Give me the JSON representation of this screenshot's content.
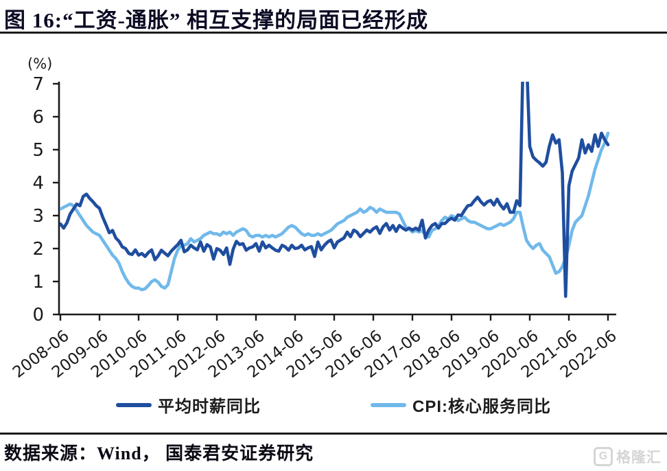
{
  "figure": {
    "title": "图 16:“工资-通胀” 相互支撑的局面已经形成",
    "source": "数据来源：Wind， 国泰君安证券研究"
  },
  "watermark": {
    "text": "格隆汇",
    "logo": "gelonghui-g-mark",
    "color": "#d5d5d5"
  },
  "chart_data": {
    "type": "line",
    "title": "“工资-通胀”相互支撑的局面已经形成",
    "unit_label": "(%)",
    "xlabel": "",
    "ylabel": "(%)",
    "ylim": [
      0,
      7
    ],
    "grid": false,
    "legend_position": "bottom",
    "frequency": "monthly",
    "x_start": "2008-06",
    "x_end": "2022-06",
    "x_tick_labels": [
      "2008-06",
      "2009-06",
      "2010-06",
      "2011-06",
      "2012-06",
      "2013-06",
      "2014-06",
      "2015-06",
      "2016-06",
      "2017-06",
      "2018-06",
      "2019-06",
      "2020-06",
      "2021-06",
      "2022-06"
    ],
    "y_ticks": [
      0,
      1,
      2,
      3,
      4,
      5,
      6,
      7
    ],
    "clip_note": "dark-blue series exceeds axis max (≈8% in 2020-04) and is clipped at top",
    "series": [
      {
        "name": "平均时薪同比",
        "color": "#1f4e9f",
        "values": [
          2.75,
          2.62,
          2.78,
          3.05,
          3.2,
          3.35,
          3.3,
          3.58,
          3.65,
          3.52,
          3.42,
          3.3,
          3.22,
          2.95,
          2.72,
          2.48,
          2.55,
          2.32,
          2.22,
          2.05,
          2.0,
          1.85,
          1.82,
          1.96,
          1.8,
          1.85,
          1.76,
          1.88,
          1.96,
          1.66,
          1.78,
          1.95,
          1.86,
          1.78,
          1.92,
          2.02,
          2.12,
          2.25,
          1.9,
          1.96,
          2.1,
          2.02,
          1.96,
          2.2,
          1.92,
          2.12,
          2.05,
          1.68,
          2.0,
          1.95,
          1.82,
          2.02,
          1.52,
          1.98,
          2.22,
          2.12,
          2.15,
          1.95,
          2.02,
          2.05,
          2.15,
          1.92,
          2.2,
          2.02,
          2.1,
          2.02,
          1.95,
          1.92,
          2.1,
          2.05,
          1.95,
          2.1,
          2.0,
          2.02,
          2.1,
          1.96,
          2.02,
          2.06,
          1.76,
          2.2,
          1.96,
          2.1,
          2.2,
          2.26,
          2.02,
          2.2,
          2.26,
          2.32,
          2.5,
          2.36,
          2.56,
          2.5,
          2.36,
          2.46,
          2.56,
          2.5,
          2.6,
          2.66,
          2.46,
          2.66,
          2.76,
          2.56,
          2.7,
          2.52,
          2.7,
          2.62,
          2.56,
          2.62,
          2.56,
          2.62,
          2.56,
          2.86,
          2.32,
          2.56,
          2.7,
          2.76,
          2.62,
          2.76,
          2.76,
          2.86,
          2.92,
          2.86,
          3.02,
          3.0,
          3.16,
          3.3,
          3.32,
          3.45,
          3.56,
          3.42,
          3.32,
          3.42,
          3.46,
          3.32,
          3.5,
          3.32,
          3.2,
          3.36,
          3.1,
          3.1,
          3.45,
          3.3,
          8.0,
          7.8,
          5.1,
          4.78,
          4.68,
          4.6,
          4.5,
          4.62,
          5.1,
          5.45,
          5.2,
          5.3,
          4.3,
          0.55,
          3.9,
          4.35,
          4.55,
          4.75,
          5.3,
          4.9,
          5.15,
          4.95,
          5.45,
          5.1,
          5.5,
          5.3,
          5.15
        ]
      },
      {
        "name": "CPI:核心服务同比",
        "color": "#70b9ea",
        "values": [
          3.2,
          3.25,
          3.3,
          3.35,
          3.3,
          3.15,
          3.0,
          2.85,
          2.7,
          2.6,
          2.5,
          2.45,
          2.4,
          2.25,
          2.1,
          1.95,
          1.8,
          1.7,
          1.55,
          1.3,
          1.1,
          0.95,
          0.85,
          0.8,
          0.8,
          0.75,
          0.78,
          0.88,
          1.0,
          1.05,
          0.98,
          0.85,
          0.8,
          0.9,
          1.3,
          1.7,
          1.95,
          2.1,
          2.1,
          2.15,
          2.3,
          2.2,
          2.25,
          2.3,
          2.4,
          2.45,
          2.5,
          2.45,
          2.45,
          2.4,
          2.5,
          2.45,
          2.5,
          2.4,
          2.5,
          2.55,
          2.6,
          2.55,
          2.4,
          2.35,
          2.4,
          2.4,
          2.35,
          2.4,
          2.35,
          2.4,
          2.35,
          2.4,
          2.45,
          2.55,
          2.65,
          2.7,
          2.65,
          2.55,
          2.45,
          2.4,
          2.45,
          2.4,
          2.4,
          2.45,
          2.4,
          2.45,
          2.5,
          2.55,
          2.65,
          2.75,
          2.8,
          2.85,
          2.95,
          3.0,
          3.05,
          3.1,
          3.2,
          3.1,
          3.15,
          3.25,
          3.2,
          3.1,
          3.2,
          3.15,
          3.1,
          3.1,
          3.1,
          3.1,
          3.05,
          2.85,
          2.65,
          2.6,
          2.5,
          2.55,
          2.5,
          2.55,
          2.4,
          2.35,
          2.55,
          2.6,
          2.7,
          2.85,
          2.95,
          2.9,
          3.0,
          2.95,
          2.85,
          2.9,
          2.95,
          2.85,
          2.8,
          2.8,
          2.75,
          2.7,
          2.65,
          2.6,
          2.6,
          2.65,
          2.7,
          2.75,
          2.7,
          2.75,
          2.8,
          2.9,
          3.1,
          3.1,
          2.65,
          2.25,
          2.1,
          2.0,
          2.1,
          2.15,
          1.95,
          1.85,
          1.75,
          1.5,
          1.25,
          1.3,
          1.45,
          1.7,
          2.1,
          2.55,
          2.8,
          2.9,
          3.0,
          3.3,
          3.6,
          4.0,
          4.4,
          4.7,
          5.0,
          5.2,
          5.5
        ]
      }
    ]
  }
}
